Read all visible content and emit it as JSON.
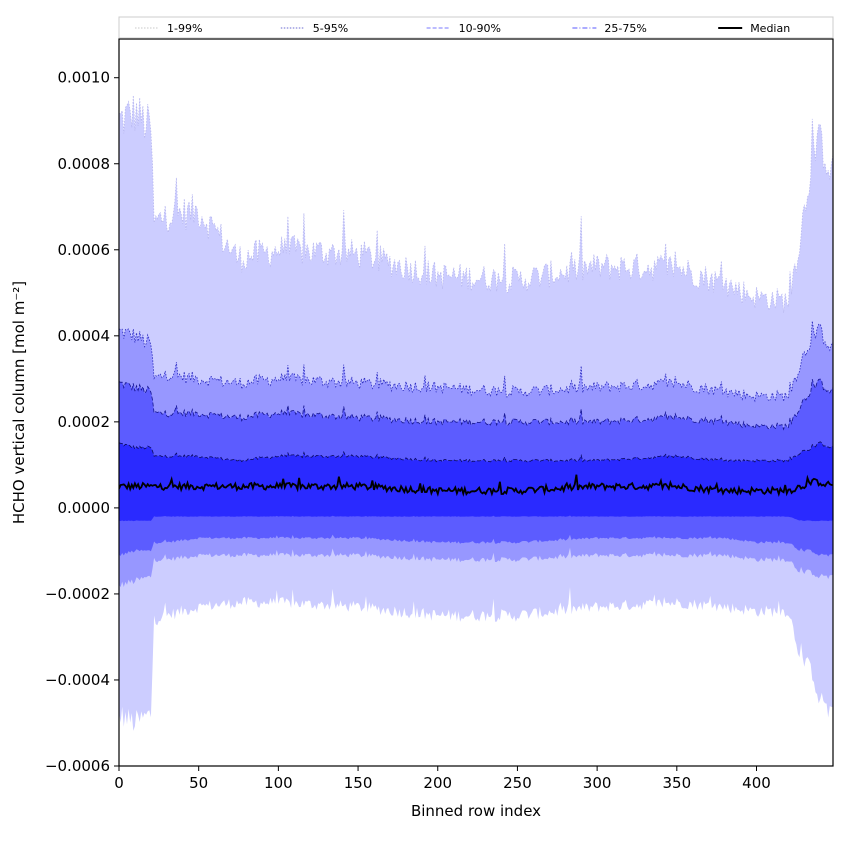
{
  "chart_data": {
    "type": "area",
    "title": "",
    "xlabel": "Binned row index",
    "ylabel": "HCHO vertical column [mol m⁻²]",
    "xlim": [
      0,
      448
    ],
    "ylim": [
      -0.0006,
      0.00109
    ],
    "xticks": [
      0,
      50,
      100,
      150,
      200,
      250,
      300,
      350,
      400
    ],
    "yticks": [
      -0.0006,
      -0.0004,
      -0.0002,
      0.0,
      0.0002,
      0.0004,
      0.0006,
      0.0008,
      0.001
    ],
    "ytick_labels": [
      "−0.0006",
      "−0.0004",
      "−0.0002",
      "0.0000",
      "0.0002",
      "0.0004",
      "0.0006",
      "0.0008",
      "0.0010"
    ],
    "legend_position": "top",
    "control_x": [
      0,
      10,
      20,
      22,
      30,
      50,
      75,
      100,
      150,
      200,
      250,
      300,
      350,
      380,
      400,
      420,
      428,
      435,
      440,
      448
    ],
    "bands": [
      {
        "name": "1-99%",
        "color": "#cccdff",
        "line_color": "#b8b8f0",
        "lower": [
          -0.00048,
          -0.0005,
          -0.00048,
          -0.00026,
          -0.00025,
          -0.00023,
          -0.00022,
          -0.00022,
          -0.00023,
          -0.00025,
          -0.00025,
          -0.00023,
          -0.00022,
          -0.00023,
          -0.00024,
          -0.00024,
          -0.00035,
          -0.00038,
          -0.00045,
          -0.00048
        ],
        "upper": [
          0.0009,
          0.00092,
          0.00088,
          0.00066,
          0.00068,
          0.00069,
          0.00058,
          0.0006,
          0.00059,
          0.00054,
          0.00053,
          0.00056,
          0.00056,
          0.00052,
          0.00049,
          0.00048,
          0.00064,
          0.00082,
          0.00085,
          0.00078
        ]
      },
      {
        "name": "5-95%",
        "color": "#9797ff",
        "line_color": "#2a2abf",
        "lower": [
          -0.00018,
          -0.00017,
          -0.00016,
          -0.00012,
          -0.00012,
          -0.00011,
          -0.00011,
          -0.00011,
          -0.00011,
          -0.00012,
          -0.00012,
          -0.00011,
          -0.00011,
          -0.00011,
          -0.00012,
          -0.00012,
          -0.00015,
          -0.00015,
          -0.00016,
          -0.00016
        ],
        "upper": [
          0.00041,
          0.0004,
          0.00038,
          0.0003,
          0.00031,
          0.0003,
          0.00029,
          0.0003,
          0.00029,
          0.00028,
          0.00027,
          0.00028,
          0.00029,
          0.00027,
          0.00026,
          0.00026,
          0.00034,
          0.0004,
          0.00041,
          0.00037
        ]
      },
      {
        "name": "10-90%",
        "color": "#5c5cff",
        "line_color": "#14148f",
        "lower": [
          -0.00011,
          -0.0001,
          -0.0001,
          -8e-05,
          -8e-05,
          -7e-05,
          -7e-05,
          -7e-05,
          -7e-05,
          -8e-05,
          -8e-05,
          -7e-05,
          -7e-05,
          -7e-05,
          -8e-05,
          -8e-05,
          -0.0001,
          -0.0001,
          -0.00011,
          -0.00011
        ],
        "upper": [
          0.00029,
          0.00028,
          0.00027,
          0.00022,
          0.00022,
          0.00022,
          0.00021,
          0.00022,
          0.00021,
          0.0002,
          0.0002,
          0.0002,
          0.00021,
          0.0002,
          0.00019,
          0.00019,
          0.00024,
          0.00028,
          0.00029,
          0.00027
        ]
      },
      {
        "name": "25-75%",
        "color": "#2a2aff",
        "line_color": "#0a0a60",
        "lower": [
          -3e-05,
          -3e-05,
          -3e-05,
          -2e-05,
          -2e-05,
          -2e-05,
          -2e-05,
          -2e-05,
          -2e-05,
          -2e-05,
          -2e-05,
          -2e-05,
          -2e-05,
          -2e-05,
          -2e-05,
          -2e-05,
          -3e-05,
          -3e-05,
          -3e-05,
          -3e-05
        ],
        "upper": [
          0.00015,
          0.00014,
          0.00014,
          0.00012,
          0.00012,
          0.00012,
          0.00011,
          0.00012,
          0.00012,
          0.00011,
          0.00011,
          0.00011,
          0.00012,
          0.00011,
          0.00011,
          0.00011,
          0.00013,
          0.00014,
          0.00015,
          0.00014
        ]
      }
    ],
    "median": {
      "name": "Median",
      "color": "#000000",
      "values": [
        5e-05,
        5e-05,
        5e-05,
        5e-05,
        5e-05,
        5e-05,
        5e-05,
        5e-05,
        5e-05,
        4e-05,
        4e-05,
        5e-05,
        5e-05,
        4e-05,
        4e-05,
        4e-05,
        5e-05,
        6e-05,
        6e-05,
        5e-05
      ]
    },
    "legend": [
      {
        "label": "1-99%",
        "style": "dotted-faint",
        "color": "#c8c8c8"
      },
      {
        "label": "5-95%",
        "style": "dotted",
        "color": "#6a6ad0"
      },
      {
        "label": "10-90%",
        "style": "dashed",
        "color": "#7a7aff"
      },
      {
        "label": "25-75%",
        "style": "dashdot",
        "color": "#5a5aff"
      },
      {
        "label": "Median",
        "style": "solid",
        "color": "#000000"
      }
    ]
  }
}
